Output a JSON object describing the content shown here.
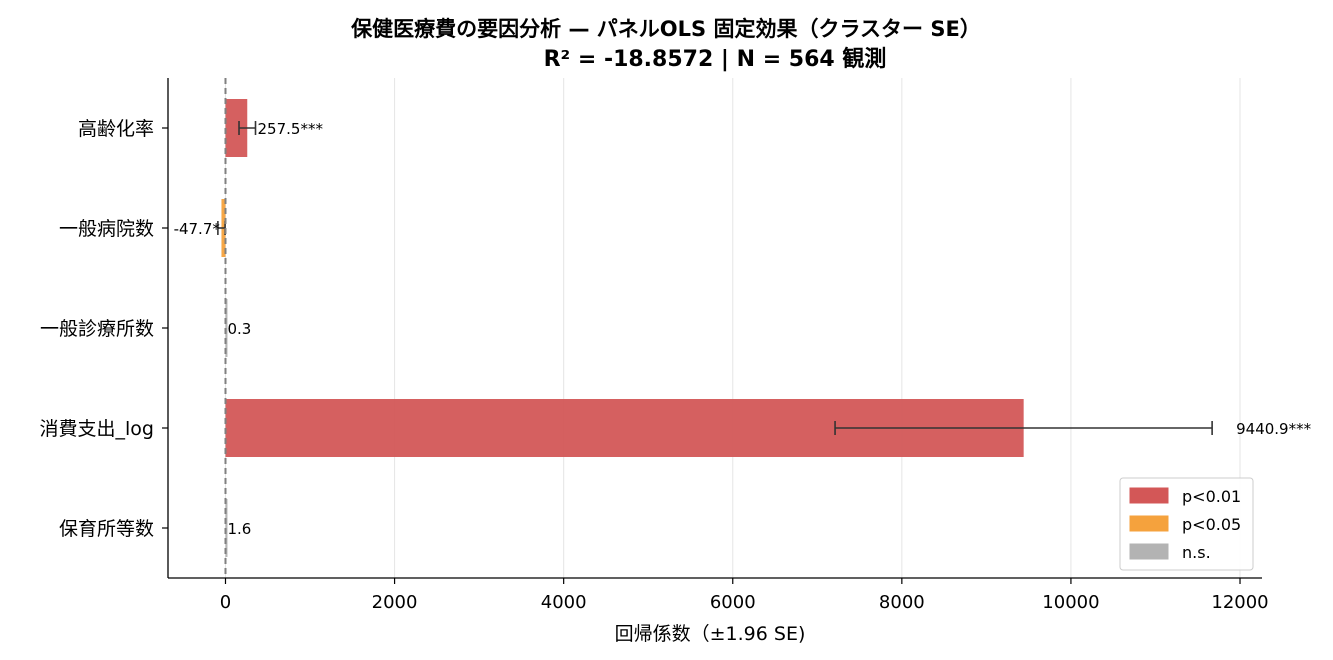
{
  "chart_data": {
    "type": "bar",
    "orientation": "horizontal",
    "title": "保健医療費の要因分析 — パネルOLS 固定効果（クラスター SE）",
    "subtitle": "R² = -18.8572  |  N = 564 観測",
    "xlabel": "回帰係数（±1.96 SE)",
    "ylabel": "",
    "xlim": [
      -680,
      12260
    ],
    "xticks": [
      0,
      2000,
      4000,
      6000,
      8000,
      10000,
      12000
    ],
    "xtick_labels": [
      "0",
      "2000",
      "4000",
      "6000",
      "8000",
      "10000",
      "12000"
    ],
    "grid": "x",
    "reference_line": 0,
    "legend_position": "bottom-right",
    "categories": [
      "高齢化率",
      "一般病院数",
      "一般診療所数",
      "消費支出_log",
      "保育所等数"
    ],
    "values": [
      257.5,
      -47.7,
      0.3,
      9440.9,
      1.6
    ],
    "ci_low": [
      160,
      -90,
      0.3,
      7210,
      1.6
    ],
    "ci_high": [
      355,
      -5,
      0.3,
      11670,
      1.6
    ],
    "value_labels": [
      "257.5***",
      "-47.7*",
      "0.3",
      "9440.9***",
      "1.6"
    ],
    "significance": [
      "p<0.01",
      "p<0.05",
      "n.s.",
      "p<0.01",
      "n.s."
    ],
    "colors": {
      "p<0.01": "#d35757",
      "p<0.05": "#f5a23d",
      "n.s.": "#b3b3b3",
      "errorbar": "#333333",
      "zero_line": "#808080",
      "grid": "#e5e5e5"
    },
    "legend": [
      {
        "key": "p<0.01",
        "label": "p<0.01"
      },
      {
        "key": "p<0.05",
        "label": "p<0.05"
      },
      {
        "key": "n.s.",
        "label": "n.s."
      }
    ]
  }
}
